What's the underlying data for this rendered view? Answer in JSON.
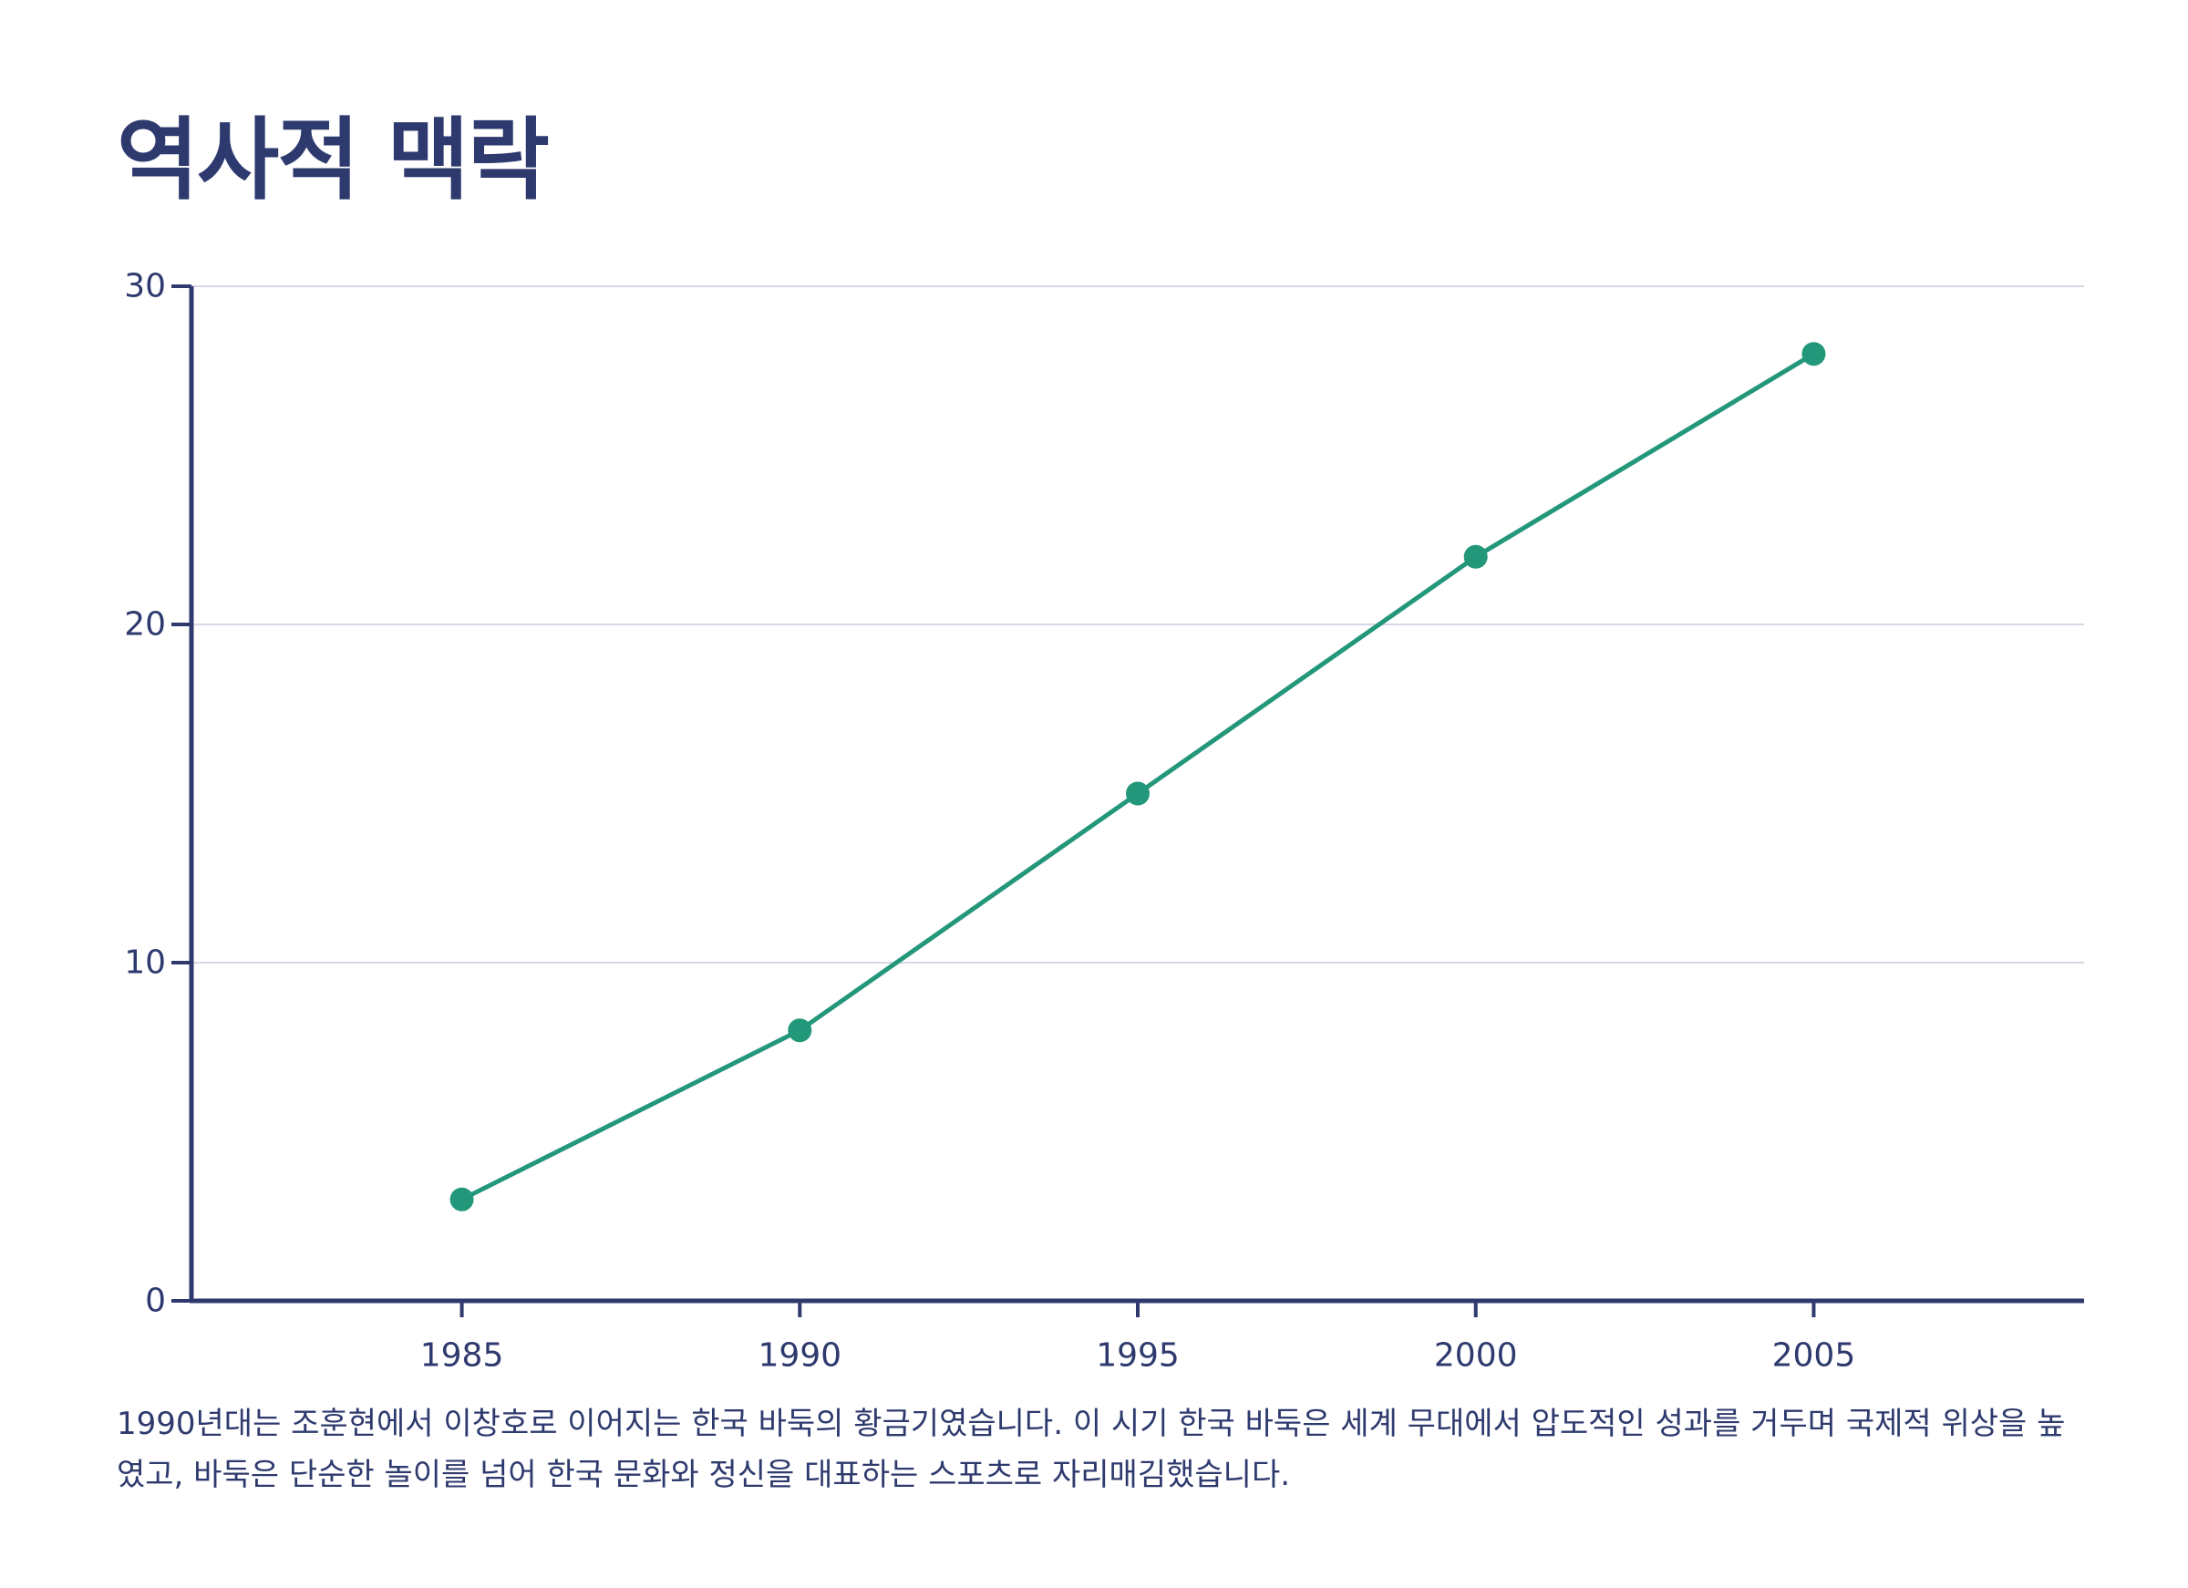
{
  "page": {
    "title": "역사적 맥락",
    "caption": "1990년대는 조훈현에서 이창호로 이어지는 한국 바둑의 황금기였습니다. 이 시기 한국 바둑은 세계 무대에서 압도적인 성과를 거두며 국제적 위상을 높였고, 바둑은 단순한 놀이를 넘어 한국 문화와 정신을 대표하는 스포츠로 자리매김했습니다."
  },
  "colors": {
    "text": "#2e3a6e",
    "axis": "#2e3a6e",
    "grid": "#d6d8e6",
    "series": "#23977a"
  },
  "chart_data": {
    "type": "line",
    "title": "",
    "xlabel": "",
    "ylabel": "",
    "x": [
      "1985",
      "1990",
      "1995",
      "2000",
      "2005"
    ],
    "xlim": [
      1981,
      2009
    ],
    "ylim": [
      0,
      30
    ],
    "yticks": [
      "0",
      "10",
      "20",
      "30"
    ],
    "grid": true,
    "legend": "none",
    "series": [
      {
        "values": [
          3,
          8,
          15,
          22,
          28
        ],
        "markers": true
      }
    ]
  }
}
